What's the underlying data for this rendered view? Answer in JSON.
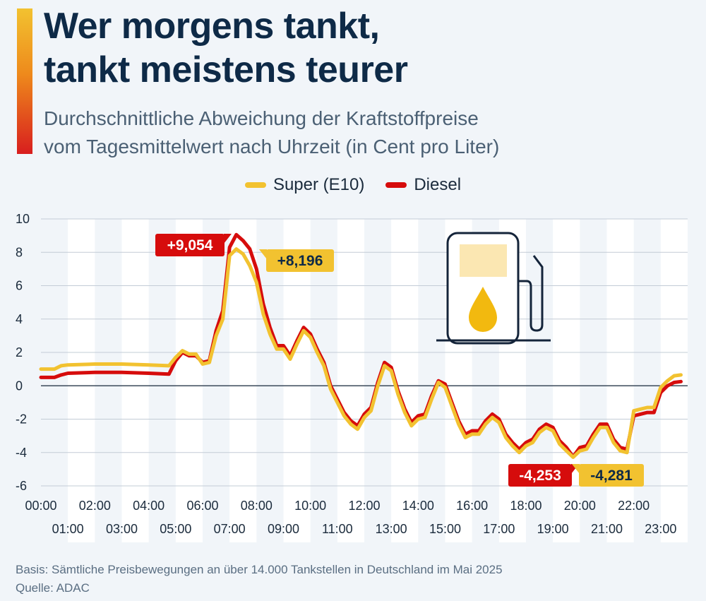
{
  "header": {
    "title_line1": "Wer morgens tankt,",
    "title_line2": "tankt meistens teurer",
    "subtitle_line1": "Durchschnittliche Abweichung der Kraftstoffpreise",
    "subtitle_line2": "vom Tagesmittelwert nach Uhrzeit (in Cent pro Liter)"
  },
  "colors": {
    "super": "#f2c230",
    "diesel": "#d60c0c",
    "title": "#0e2a47",
    "band": "#ffffff",
    "grid": "#c3ccd6"
  },
  "icon": "fuel-pump-icon",
  "footer": {
    "basis": "Basis: Sämtliche Preisbewegungen an über 14.000 Tankstellen in Deutschland im Mai 2025",
    "source": "Quelle: ADAC"
  },
  "chart_data": {
    "type": "line",
    "x_unit": "hours",
    "xlim": [
      0,
      24
    ],
    "ylim": [
      -6,
      10
    ],
    "yticks": [
      -6,
      -4,
      -2,
      0,
      2,
      4,
      6,
      8,
      10
    ],
    "grid": true,
    "legend_position": "top-center",
    "xticks_top": [
      "00:00",
      "02:00",
      "04:00",
      "06:00",
      "08:00",
      "10:00",
      "12:00",
      "14:00",
      "16:00",
      "18:00",
      "20:00",
      "22:00"
    ],
    "xticks_bottom": [
      "01:00",
      "03:00",
      "05:00",
      "07:00",
      "09:00",
      "11:00",
      "13:00",
      "15:00",
      "17:00",
      "19:00",
      "21:00",
      "23:00"
    ],
    "x": [
      0,
      0.5,
      0.75,
      1,
      2,
      3,
      4,
      4.75,
      5,
      5.25,
      5.5,
      5.75,
      6,
      6.25,
      6.5,
      6.75,
      7,
      7.25,
      7.5,
      7.75,
      8,
      8.25,
      8.5,
      8.75,
      9,
      9.25,
      9.5,
      9.75,
      10,
      10.25,
      10.5,
      10.75,
      11,
      11.25,
      11.5,
      11.75,
      12,
      12.25,
      12.5,
      12.75,
      13,
      13.25,
      13.5,
      13.75,
      14,
      14.25,
      14.5,
      14.75,
      15,
      15.25,
      15.5,
      15.75,
      16,
      16.25,
      16.5,
      16.75,
      17,
      17.25,
      17.5,
      17.75,
      18,
      18.25,
      18.5,
      18.75,
      19,
      19.25,
      19.5,
      19.75,
      20,
      20.25,
      20.5,
      20.75,
      21,
      21.25,
      21.5,
      21.75,
      22,
      22.25,
      22.5,
      22.75,
      23,
      23.25,
      23.5,
      23.75
    ],
    "series": [
      {
        "name": "Super (E10)",
        "values": [
          1.0,
          1.0,
          1.2,
          1.25,
          1.3,
          1.3,
          1.25,
          1.2,
          1.7,
          2.1,
          1.9,
          1.9,
          1.3,
          1.4,
          3.0,
          4.0,
          7.8,
          8.196,
          7.9,
          7.2,
          6.2,
          4.3,
          3.1,
          2.2,
          2.2,
          1.6,
          2.5,
          3.3,
          2.9,
          2.0,
          1.2,
          -0.2,
          -1.0,
          -1.8,
          -2.3,
          -2.6,
          -1.9,
          -1.5,
          0.0,
          1.2,
          0.9,
          -0.5,
          -1.6,
          -2.4,
          -2.0,
          -1.9,
          -0.8,
          0.2,
          -0.1,
          -1.2,
          -2.3,
          -3.1,
          -2.9,
          -2.9,
          -2.3,
          -1.9,
          -2.2,
          -3.1,
          -3.6,
          -4.0,
          -3.6,
          -3.4,
          -2.8,
          -2.5,
          -2.7,
          -3.5,
          -3.9,
          -4.281,
          -3.9,
          -3.8,
          -3.1,
          -2.5,
          -2.5,
          -3.4,
          -3.9,
          -4.0,
          -1.5,
          -1.4,
          -1.3,
          -1.3,
          -0.1,
          0.3,
          0.6,
          0.65
        ]
      },
      {
        "name": "Diesel",
        "values": [
          0.5,
          0.5,
          0.65,
          0.75,
          0.8,
          0.8,
          0.75,
          0.7,
          1.5,
          2.0,
          1.8,
          1.8,
          1.4,
          1.5,
          3.3,
          4.5,
          8.3,
          9.054,
          8.7,
          8.2,
          7.0,
          4.9,
          3.5,
          2.4,
          2.4,
          1.8,
          2.7,
          3.5,
          3.1,
          2.2,
          1.4,
          0.0,
          -0.8,
          -1.6,
          -2.1,
          -2.4,
          -1.7,
          -1.3,
          0.2,
          1.4,
          1.1,
          -0.3,
          -1.4,
          -2.2,
          -1.8,
          -1.7,
          -0.6,
          0.3,
          0.1,
          -1.0,
          -2.1,
          -2.9,
          -2.7,
          -2.7,
          -2.1,
          -1.7,
          -2.0,
          -2.9,
          -3.4,
          -3.8,
          -3.4,
          -3.2,
          -2.6,
          -2.3,
          -2.5,
          -3.3,
          -3.7,
          -4.253,
          -3.7,
          -3.6,
          -2.9,
          -2.3,
          -2.3,
          -3.2,
          -3.7,
          -3.8,
          -1.8,
          -1.7,
          -1.6,
          -1.6,
          -0.4,
          0.0,
          0.2,
          0.25
        ]
      }
    ],
    "annotations": [
      {
        "text": "+9,054",
        "series": "Diesel",
        "x": 7.25,
        "y": 9.054
      },
      {
        "text": "+8,196",
        "series": "Super (E10)",
        "x": 7.25,
        "y": 8.196
      },
      {
        "text": "-4,253",
        "series": "Diesel",
        "x": 19.75,
        "y": -4.253
      },
      {
        "text": "-4,281",
        "series": "Super (E10)",
        "x": 19.75,
        "y": -4.281
      }
    ]
  }
}
